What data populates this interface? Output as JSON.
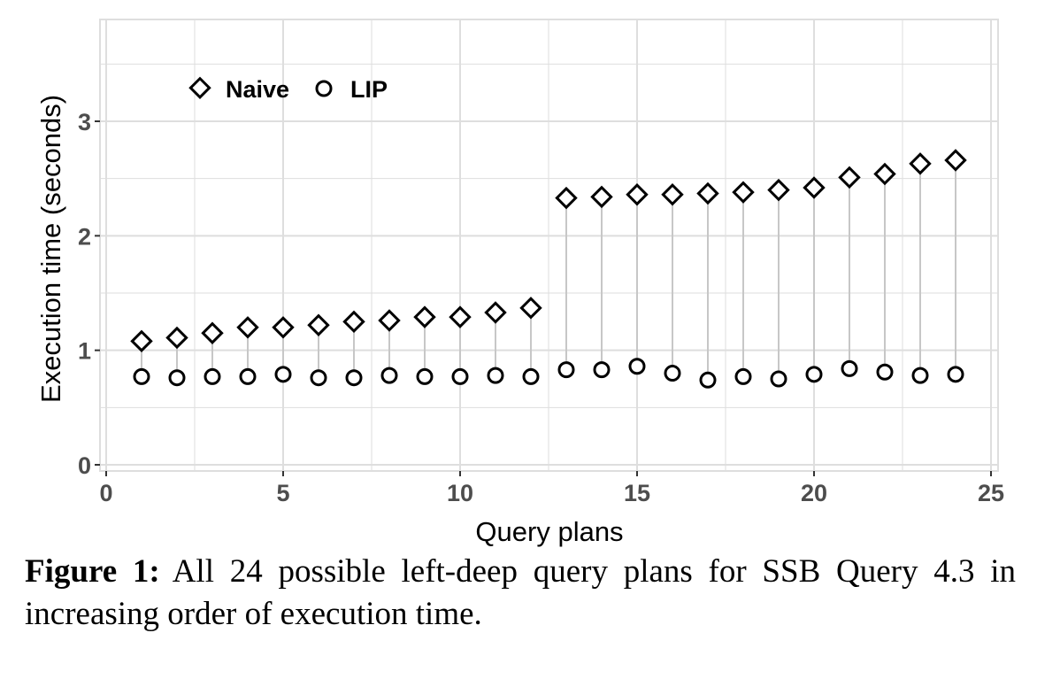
{
  "chart_data": {
    "type": "scatter",
    "xlabel": "Query plans",
    "ylabel": "Execution time (seconds)",
    "xlim": [
      0,
      25
    ],
    "ylim": [
      0,
      3.8
    ],
    "xticks": [
      0,
      5,
      10,
      15,
      20,
      25
    ],
    "yticks": [
      0,
      1,
      2,
      3
    ],
    "grid": true,
    "legend_position": "top-left",
    "x": [
      1,
      2,
      3,
      4,
      5,
      6,
      7,
      8,
      9,
      10,
      11,
      12,
      13,
      14,
      15,
      16,
      17,
      18,
      19,
      20,
      21,
      22,
      23,
      24
    ],
    "series": [
      {
        "name": "Naive",
        "marker": "diamond",
        "values": [
          1.08,
          1.11,
          1.15,
          1.2,
          1.2,
          1.22,
          1.25,
          1.26,
          1.29,
          1.29,
          1.33,
          1.37,
          2.33,
          2.34,
          2.36,
          2.36,
          2.37,
          2.38,
          2.4,
          2.42,
          2.51,
          2.54,
          2.63,
          2.66
        ]
      },
      {
        "name": "LIP",
        "marker": "circle",
        "values": [
          0.77,
          0.76,
          0.77,
          0.77,
          0.79,
          0.76,
          0.76,
          0.78,
          0.77,
          0.77,
          0.78,
          0.77,
          0.83,
          0.83,
          0.86,
          0.8,
          0.74,
          0.77,
          0.75,
          0.79,
          0.84,
          0.81,
          0.78,
          0.79
        ]
      }
    ],
    "colors": {
      "grid": "#dedede",
      "connector": "#c7c7c7",
      "marker": "#000000",
      "tick_label": "#4d4d4d"
    }
  },
  "caption": {
    "label": "Figure 1:",
    "text": "All 24 possible left-deep query plans for SSB Query 4.3 in increasing order of execution time."
  }
}
